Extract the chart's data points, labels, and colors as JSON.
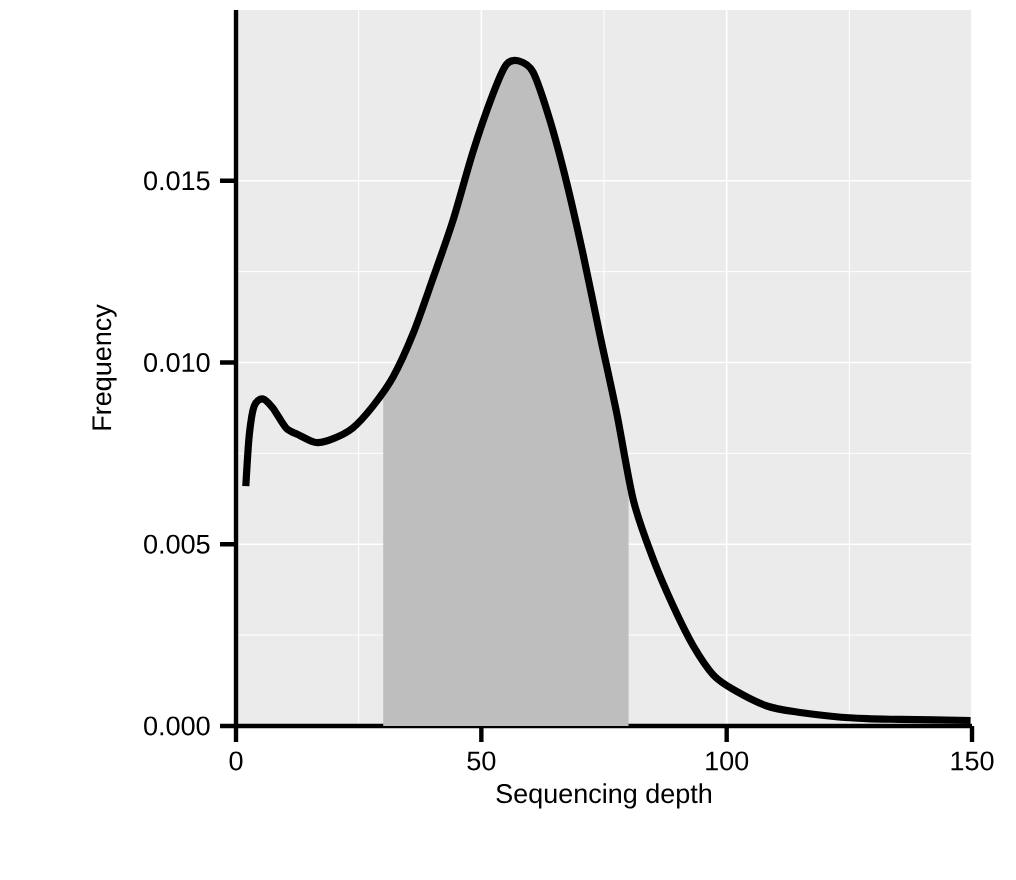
{
  "chart_data": {
    "type": "line",
    "xlabel": "Sequencing depth",
    "ylabel": "Frequency",
    "series": [
      {
        "type": "area",
        "color": "#bebebe",
        "x": [
          30,
          32.0,
          36.1,
          40.1,
          44.2,
          48.3,
          52.4,
          55.1,
          57.6,
          60.5,
          63.9,
          67.3,
          70.7,
          74.1,
          77.6,
          80
        ],
        "values": [
          0.0092,
          0.0096,
          0.0108,
          0.0123,
          0.0139,
          0.0158,
          0.0174,
          0.0182,
          0.0183,
          0.018,
          0.0167,
          0.015,
          0.013,
          0.0108,
          0.0086,
          0.0069
        ]
      },
      {
        "color": "#000000",
        "x": [
          2.0,
          2.7,
          3.7,
          5.4,
          7.5,
          10.2,
          12.9,
          16.3,
          19.7,
          23.8,
          27.9,
          32.0,
          36.1,
          40.1,
          44.2,
          48.3,
          52.4,
          55.1,
          57.6,
          60.5,
          63.9,
          67.3,
          70.7,
          74.1,
          77.6,
          81.0,
          85.0,
          89.1,
          93.2,
          97.3,
          101.4,
          108.2,
          115.0,
          121.8,
          128.6,
          135.4,
          149.7
        ],
        "values": [
          0.0066,
          0.008,
          0.0088,
          0.009,
          0.00875,
          0.0082,
          0.008,
          0.0078,
          0.0079,
          0.0082,
          0.0088,
          0.0096,
          0.0108,
          0.0123,
          0.0139,
          0.0158,
          0.0174,
          0.0182,
          0.0183,
          0.018,
          0.0167,
          0.015,
          0.013,
          0.0108,
          0.0086,
          0.0062,
          0.0046,
          0.0033,
          0.0022,
          0.0014,
          0.001,
          0.00055,
          0.00037,
          0.00026,
          0.0002,
          0.00018,
          0.00015
        ]
      }
    ],
    "xlim": [
      0,
      150
    ],
    "xticks": [
      0,
      50,
      100,
      150
    ],
    "ylim": [
      0,
      0.0197
    ],
    "yticks": [
      {
        "value": 0,
        "label": "0.000"
      },
      {
        "value": 0.005,
        "label": "0.005"
      },
      {
        "value": 0.01,
        "label": "0.010"
      },
      {
        "value": 0.015,
        "label": "0.015"
      }
    ],
    "grid": true
  }
}
